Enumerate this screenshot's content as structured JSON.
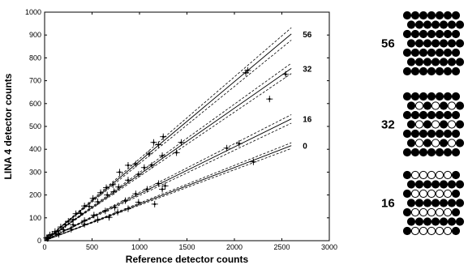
{
  "chart_data": {
    "type": "scatter",
    "title": "",
    "xlabel": "Reference detector counts",
    "ylabel": "LINA 4 detector counts",
    "xlim": [
      0,
      3000
    ],
    "ylim": [
      0,
      1000
    ],
    "xticks": [
      "0",
      "500",
      "1000",
      "1500",
      "2000",
      "2500",
      "3000"
    ],
    "yticks": [
      "0",
      "100",
      "200",
      "300",
      "400",
      "500",
      "600",
      "700",
      "800",
      "900",
      "1000"
    ],
    "grid": false,
    "series": [
      {
        "name": "56",
        "slope": 0.348,
        "band": 0.03,
        "points": [
          [
            20,
            12
          ],
          [
            55,
            25
          ],
          [
            110,
            40
          ],
          [
            170,
            60
          ],
          [
            250,
            85
          ],
          [
            330,
            118
          ],
          [
            420,
            152
          ],
          [
            510,
            185
          ],
          [
            590,
            210
          ],
          [
            650,
            232
          ],
          [
            720,
            245
          ],
          [
            790,
            300
          ],
          [
            880,
            330
          ],
          [
            960,
            335
          ],
          [
            1100,
            380
          ],
          [
            1150,
            430
          ],
          [
            1200,
            420
          ],
          [
            1250,
            455
          ],
          [
            2120,
            735
          ],
          [
            2140,
            745
          ]
        ]
      },
      {
        "name": "32",
        "slope": 0.29,
        "band": 0.03,
        "points": [
          [
            30,
            10
          ],
          [
            80,
            28
          ],
          [
            140,
            42
          ],
          [
            220,
            70
          ],
          [
            300,
            92
          ],
          [
            380,
            120
          ],
          [
            470,
            150
          ],
          [
            560,
            170
          ],
          [
            660,
            200
          ],
          [
            730,
            215
          ],
          [
            780,
            235
          ],
          [
            880,
            265
          ],
          [
            990,
            290
          ],
          [
            1050,
            320
          ],
          [
            1130,
            330
          ],
          [
            1240,
            372
          ],
          [
            1390,
            385
          ],
          [
            1440,
            430
          ],
          [
            2370,
            620
          ],
          [
            2540,
            728
          ]
        ]
      },
      {
        "name": "16",
        "slope": 0.205,
        "band": 0.035,
        "points": [
          [
            40,
            15
          ],
          [
            120,
            30
          ],
          [
            200,
            48
          ],
          [
            300,
            70
          ],
          [
            420,
            88
          ],
          [
            520,
            112
          ],
          [
            640,
            130
          ],
          [
            740,
            145
          ],
          [
            850,
            175
          ],
          [
            960,
            205
          ],
          [
            1080,
            225
          ],
          [
            1200,
            250
          ],
          [
            1920,
            405
          ],
          [
            2050,
            425
          ]
        ]
      },
      {
        "name": "0",
        "slope": 0.16,
        "band": 0.03,
        "points": [
          [
            35,
            10
          ],
          [
            150,
            28
          ],
          [
            280,
            50
          ],
          [
            420,
            72
          ],
          [
            560,
            92
          ],
          [
            680,
            102
          ],
          [
            770,
            125
          ],
          [
            880,
            140
          ],
          [
            990,
            168
          ],
          [
            1160,
            160
          ],
          [
            1270,
            240
          ],
          [
            1240,
            225
          ],
          [
            2200,
            345
          ]
        ]
      }
    ],
    "patterns": [
      {
        "label": "56"
      },
      {
        "label": "32"
      },
      {
        "label": "16"
      }
    ]
  }
}
